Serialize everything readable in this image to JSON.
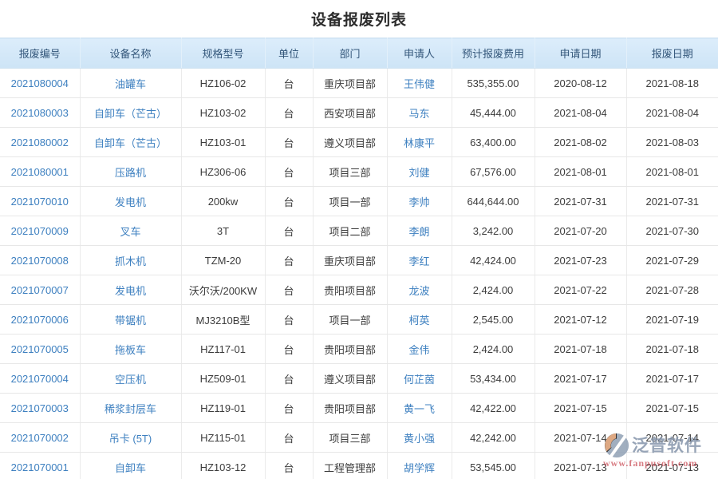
{
  "page": {
    "title": "设备报废列表"
  },
  "table": {
    "columns": [
      {
        "key": "scrap_no",
        "label": "报废编号",
        "link": true
      },
      {
        "key": "equip_name",
        "label": "设备名称",
        "link": true
      },
      {
        "key": "spec_model",
        "label": "规格型号",
        "link": false
      },
      {
        "key": "unit",
        "label": "单位",
        "link": false
      },
      {
        "key": "department",
        "label": "部门",
        "link": false
      },
      {
        "key": "applicant",
        "label": "申请人",
        "link": true
      },
      {
        "key": "est_cost",
        "label": "预计报废费用",
        "link": false
      },
      {
        "key": "apply_date",
        "label": "申请日期",
        "link": false
      },
      {
        "key": "scrap_date",
        "label": "报废日期",
        "link": false
      }
    ],
    "rows": [
      {
        "scrap_no": "2021080004",
        "equip_name": "油罐车",
        "spec_model": "HZ106-02",
        "unit": "台",
        "department": "重庆项目部",
        "applicant": "王伟健",
        "est_cost": "535,355.00",
        "apply_date": "2020-08-12",
        "scrap_date": "2021-08-18"
      },
      {
        "scrap_no": "2021080003",
        "equip_name": "自卸车（芒古）",
        "spec_model": "HZ103-02",
        "unit": "台",
        "department": "西安项目部",
        "applicant": "马东",
        "est_cost": "45,444.00",
        "apply_date": "2021-08-04",
        "scrap_date": "2021-08-04"
      },
      {
        "scrap_no": "2021080002",
        "equip_name": "自卸车（芒古）",
        "spec_model": "HZ103-01",
        "unit": "台",
        "department": "遵义项目部",
        "applicant": "林康平",
        "est_cost": "63,400.00",
        "apply_date": "2021-08-02",
        "scrap_date": "2021-08-03"
      },
      {
        "scrap_no": "2021080001",
        "equip_name": "压路机",
        "spec_model": "HZ306-06",
        "unit": "台",
        "department": "项目三部",
        "applicant": "刘健",
        "est_cost": "67,576.00",
        "apply_date": "2021-08-01",
        "scrap_date": "2021-08-01"
      },
      {
        "scrap_no": "2021070010",
        "equip_name": "发电机",
        "spec_model": "200kw",
        "unit": "台",
        "department": "项目一部",
        "applicant": "李帅",
        "est_cost": "644,644.00",
        "apply_date": "2021-07-31",
        "scrap_date": "2021-07-31"
      },
      {
        "scrap_no": "2021070009",
        "equip_name": "叉车",
        "spec_model": "3T",
        "unit": "台",
        "department": "项目二部",
        "applicant": "李朗",
        "est_cost": "3,242.00",
        "apply_date": "2021-07-20",
        "scrap_date": "2021-07-30"
      },
      {
        "scrap_no": "2021070008",
        "equip_name": "抓木机",
        "spec_model": "TZM-20",
        "unit": "台",
        "department": "重庆项目部",
        "applicant": "李红",
        "est_cost": "42,424.00",
        "apply_date": "2021-07-23",
        "scrap_date": "2021-07-29"
      },
      {
        "scrap_no": "2021070007",
        "equip_name": "发电机",
        "spec_model": "沃尔沃/200KW",
        "unit": "台",
        "department": "贵阳项目部",
        "applicant": "龙波",
        "est_cost": "2,424.00",
        "apply_date": "2021-07-22",
        "scrap_date": "2021-07-28"
      },
      {
        "scrap_no": "2021070006",
        "equip_name": "带锯机",
        "spec_model": "MJ3210B型",
        "unit": "台",
        "department": "项目一部",
        "applicant": "柯英",
        "est_cost": "2,545.00",
        "apply_date": "2021-07-12",
        "scrap_date": "2021-07-19"
      },
      {
        "scrap_no": "2021070005",
        "equip_name": "拖板车",
        "spec_model": "HZ117-01",
        "unit": "台",
        "department": "贵阳项目部",
        "applicant": "金伟",
        "est_cost": "2,424.00",
        "apply_date": "2021-07-18",
        "scrap_date": "2021-07-18"
      },
      {
        "scrap_no": "2021070004",
        "equip_name": "空压机",
        "spec_model": "HZ509-01",
        "unit": "台",
        "department": "遵义项目部",
        "applicant": "何芷茵",
        "est_cost": "53,434.00",
        "apply_date": "2021-07-17",
        "scrap_date": "2021-07-17"
      },
      {
        "scrap_no": "2021070003",
        "equip_name": "稀浆封层车",
        "spec_model": "HZ119-01",
        "unit": "台",
        "department": "贵阳项目部",
        "applicant": "黄一飞",
        "est_cost": "42,422.00",
        "apply_date": "2021-07-15",
        "scrap_date": "2021-07-15"
      },
      {
        "scrap_no": "2021070002",
        "equip_name": "吊卡 (5T)",
        "spec_model": "HZ115-01",
        "unit": "台",
        "department": "项目三部",
        "applicant": "黄小强",
        "est_cost": "42,242.00",
        "apply_date": "2021-07-14",
        "scrap_date": "2021-07-14"
      },
      {
        "scrap_no": "2021070001",
        "equip_name": "自卸车",
        "spec_model": "HZ103-12",
        "unit": "台",
        "department": "工程管理部",
        "applicant": "胡学辉",
        "est_cost": "53,545.00",
        "apply_date": "2021-07-13",
        "scrap_date": "2021-07-13"
      }
    ]
  },
  "watermark": {
    "brand": "泛普软件",
    "url_text": "www.fanpusoft.com"
  },
  "colors": {
    "link_blue": "#3e80c0",
    "header_bg": "#d3e8f8",
    "header_text": "#33567a",
    "body_text": "#3c3c3c",
    "watermark_gray": "#8695ab",
    "watermark_red": "#c63e48"
  }
}
